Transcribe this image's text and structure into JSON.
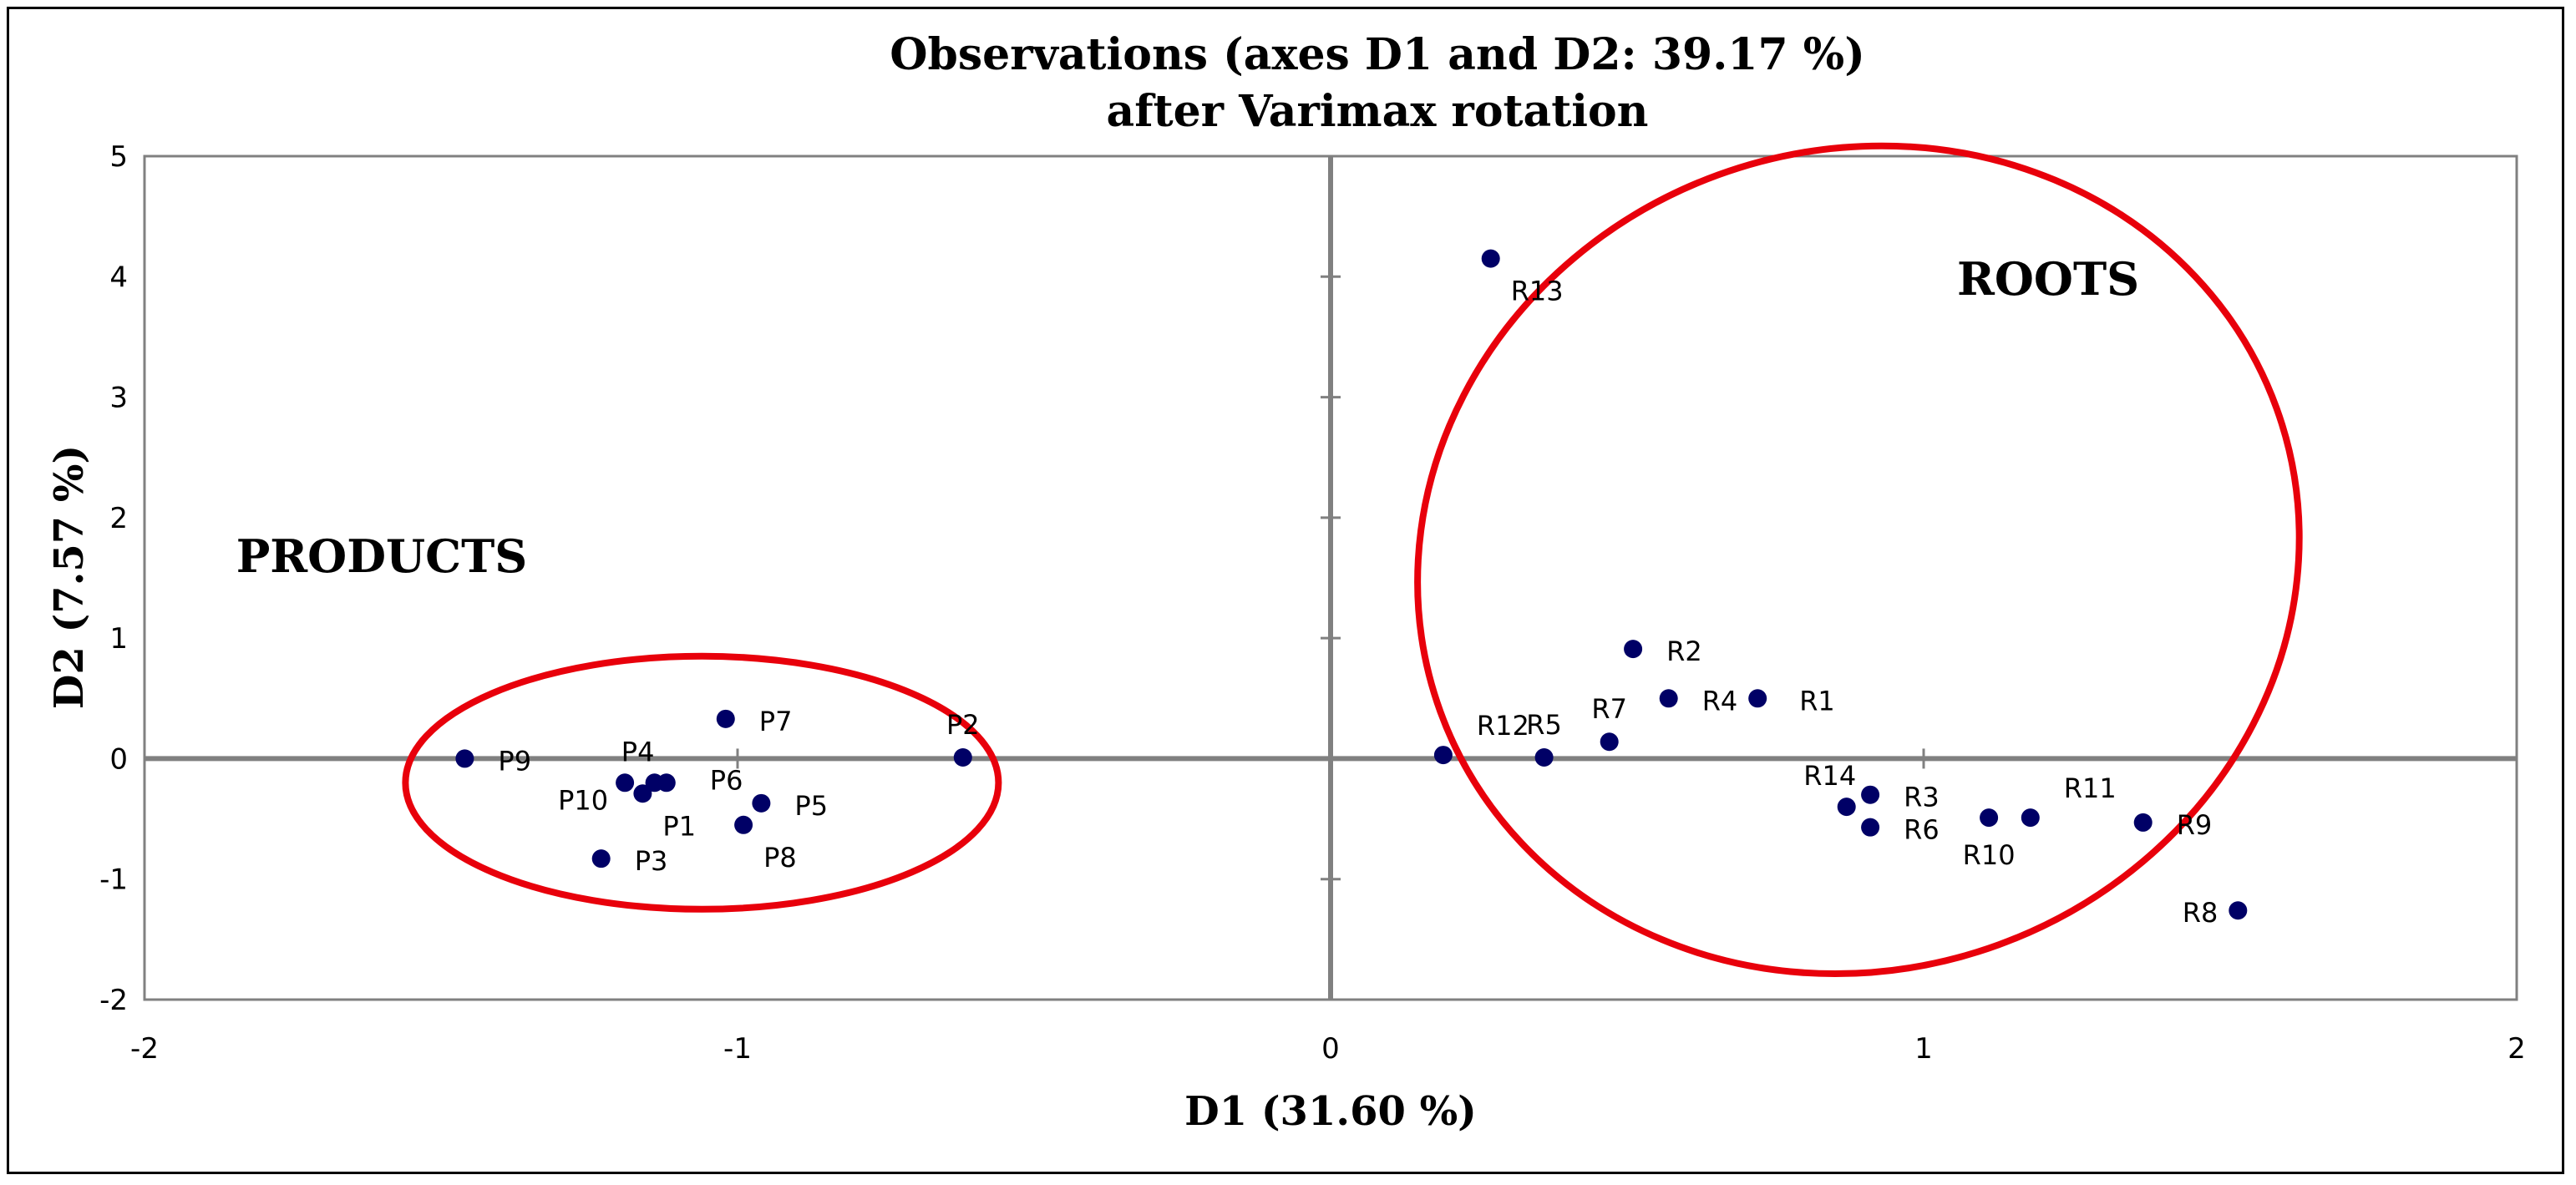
{
  "chart_data": {
    "type": "scatter",
    "title": "Observations (axes D1 and D2: 39.17 %)",
    "subtitle": "after Varimax rotation",
    "xlabel": "D1 (31.60 %)",
    "ylabel": "D2 (7.57 %)",
    "xlim": [
      -2,
      2
    ],
    "ylim": [
      -2,
      5
    ],
    "xticks": [
      -2,
      -1,
      0,
      1,
      2
    ],
    "yticks": [
      -2,
      -1,
      0,
      1,
      2,
      3,
      4,
      5
    ],
    "grid": false,
    "colors": {
      "point": "#000066",
      "ellipse": "#e8000b",
      "axis": "#808080",
      "frame": "#000000"
    },
    "points": [
      {
        "label": "P9",
        "x": -1.46,
        "y": 0.0,
        "label_pos": "right"
      },
      {
        "label": "P4",
        "x": -1.14,
        "y": -0.2,
        "label_pos": "above-left"
      },
      {
        "label": "P10",
        "x": -1.19,
        "y": -0.2,
        "label_pos": "below-left"
      },
      {
        "label": "P1",
        "x": -1.16,
        "y": -0.29,
        "label_pos": "below-right"
      },
      {
        "label": "P6",
        "x": -1.12,
        "y": -0.2,
        "label_pos": "below-far-right"
      },
      {
        "label": "P7",
        "x": -1.02,
        "y": 0.33,
        "label_pos": "right"
      },
      {
        "label": "P5",
        "x": -0.96,
        "y": -0.37,
        "label_pos": "right"
      },
      {
        "label": "P8",
        "x": -0.99,
        "y": -0.55,
        "label_pos": "below-right"
      },
      {
        "label": "P3",
        "x": -1.23,
        "y": -0.83,
        "label_pos": "right"
      },
      {
        "label": "P2",
        "x": -0.62,
        "y": 0.01,
        "label_pos": "above"
      },
      {
        "label": "R13",
        "x": 0.27,
        "y": 4.15,
        "label_pos": "below-right"
      },
      {
        "label": "R2",
        "x": 0.51,
        "y": 0.91,
        "label_pos": "right"
      },
      {
        "label": "R4",
        "x": 0.57,
        "y": 0.5,
        "label_pos": "right"
      },
      {
        "label": "R1",
        "x": 0.72,
        "y": 0.5,
        "label_pos": "right-far"
      },
      {
        "label": "R7",
        "x": 0.47,
        "y": 0.14,
        "label_pos": "above"
      },
      {
        "label": "R12",
        "x": 0.19,
        "y": 0.03,
        "label_pos": "above-right"
      },
      {
        "label": "R5",
        "x": 0.36,
        "y": 0.01,
        "label_pos": "above"
      },
      {
        "label": "R14",
        "x": 0.87,
        "y": -0.4,
        "label_pos": "above-left"
      },
      {
        "label": "R3",
        "x": 0.91,
        "y": -0.3,
        "label_pos": "right"
      },
      {
        "label": "R6",
        "x": 0.91,
        "y": -0.57,
        "label_pos": "right"
      },
      {
        "label": "R10",
        "x": 1.11,
        "y": -0.49,
        "label_pos": "below"
      },
      {
        "label": "R11",
        "x": 1.18,
        "y": -0.49,
        "label_pos": "above-right"
      },
      {
        "label": "R9",
        "x": 1.37,
        "y": -0.53,
        "label_pos": "right"
      },
      {
        "label": "R8",
        "x": 1.53,
        "y": -1.26,
        "label_pos": "left"
      }
    ],
    "annotations": [
      {
        "text": "PRODUCTS",
        "x": -1.6,
        "y": 1.55
      },
      {
        "text": "ROOTS",
        "x": 1.21,
        "y": 3.85
      }
    ],
    "ellipses": [
      {
        "name": "products",
        "cx": -1.06,
        "cy": -0.2,
        "rx": 0.5,
        "ry": 1.05,
        "angle_deg": 0
      },
      {
        "name": "roots",
        "cx": 0.89,
        "cy": 1.65,
        "rx": 0.75,
        "ry": 3.4,
        "angle_deg": -20
      }
    ]
  }
}
